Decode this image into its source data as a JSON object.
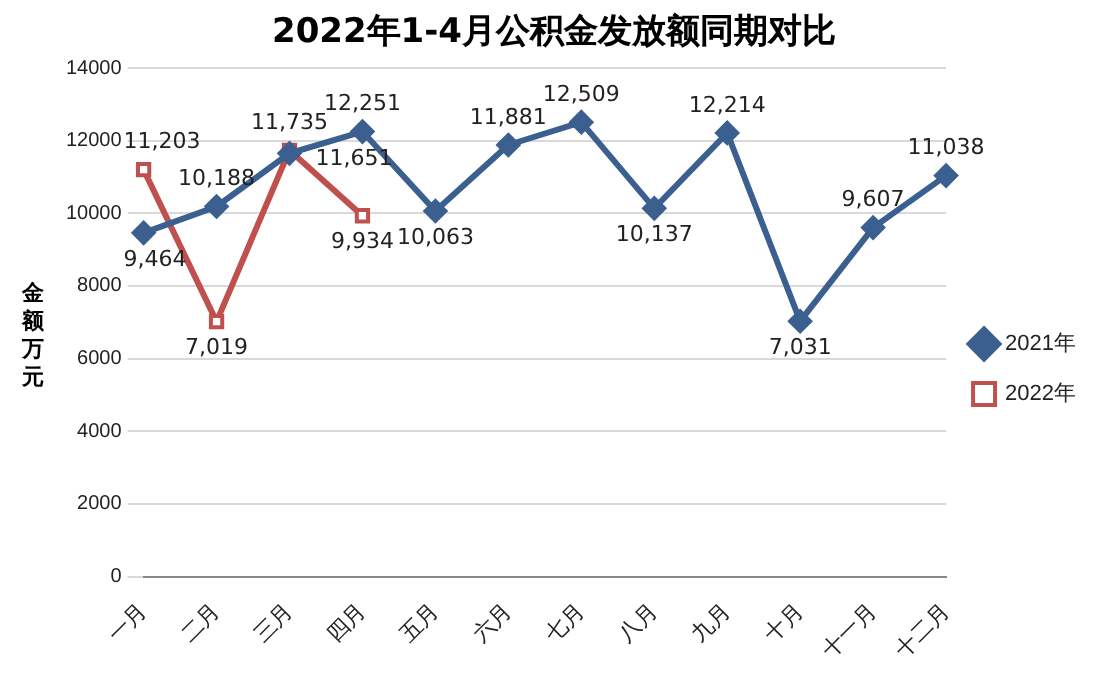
{
  "chart_data": {
    "type": "line",
    "title": "2022年1-4月公积金发放额同期对比",
    "ylabel": "金额万元",
    "categories": [
      "一月",
      "二月",
      "三月",
      "四月",
      "五月",
      "六月",
      "七月",
      "八月",
      "九月",
      "十月",
      "十一月",
      "十二月"
    ],
    "series": [
      {
        "name": "2021年",
        "color": "#3b5f8f",
        "marker": "diamond",
        "values": [
          9464,
          10188,
          11651,
          12251,
          10063,
          11881,
          12509,
          10137,
          12214,
          7031,
          9607,
          11038
        ],
        "value_labels": [
          "9,464",
          "10,188",
          "11,651",
          "12,251",
          "10,063",
          "11,881",
          "12,509",
          "10,137",
          "12,214",
          "7,031",
          "9,607",
          "11,038"
        ]
      },
      {
        "name": "2022年",
        "color": "#c0504d",
        "marker": "square",
        "values": [
          11203,
          7019,
          11735,
          9934,
          null,
          null,
          null,
          null,
          null,
          null,
          null,
          null
        ],
        "value_labels": [
          "11,203",
          "7,019",
          "11,735",
          "9,934",
          null,
          null,
          null,
          null,
          null,
          null,
          null,
          null
        ]
      }
    ],
    "ylim": [
      0,
      14000
    ],
    "yticks": [
      0,
      2000,
      4000,
      6000,
      8000,
      10000,
      12000,
      14000
    ],
    "grid": "y",
    "legend": "right"
  }
}
